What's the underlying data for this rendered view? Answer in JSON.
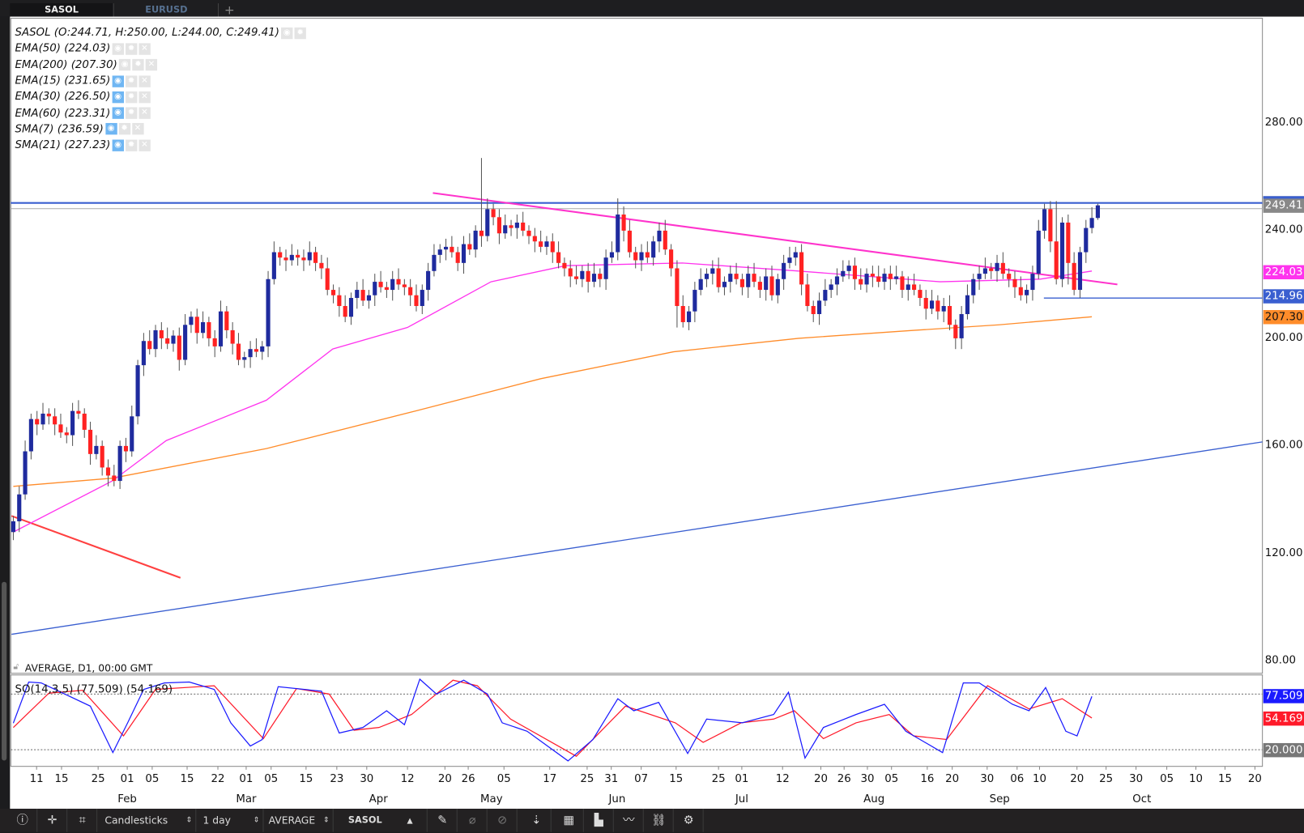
{
  "tabs": [
    "SASOL",
    "EURUSD"
  ],
  "legend": {
    "main": "SASOL (O:244.71, H:250.00, L:244.00, C:249.41)",
    "indicators": [
      {
        "label": "EMA(50) (224.03)",
        "visible": false
      },
      {
        "label": "EMA(200) (207.30)",
        "visible": false
      },
      {
        "label": "EMA(15) (231.65)",
        "visible": true
      },
      {
        "label": "EMA(30) (226.50)",
        "visible": true
      },
      {
        "label": "EMA(60) (223.31)",
        "visible": true
      },
      {
        "label": "SMA(7) (236.59)",
        "visible": true
      },
      {
        "label": "SMA(21) (227.23)",
        "visible": true
      }
    ]
  },
  "footer_label": "AVERAGE, D1, 00:00 GMT",
  "oscillator_label": "SO(14,3,5) (77.509) (54.169)",
  "price_badges": {
    "close": "249.41",
    "ema50": "224.03",
    "hline": "214.96",
    "ema200": "207.30"
  },
  "osc_badges": {
    "k": "77.509",
    "d": "54.169",
    "level": "20.000"
  },
  "colors": {
    "up": "#1f2b9e",
    "down": "#ff2222",
    "ema50": "#ff33ee",
    "ema200": "#ff8c2a",
    "k": "#1a1aff",
    "d": "#ff1a2a"
  },
  "toolbar": {
    "chart_type": "Candlesticks",
    "interval": "1 day",
    "price_type": "AVERAGE",
    "symbol": "SASOL"
  },
  "chart_data": {
    "type": "candlestick",
    "symbol": "SASOL",
    "y_ticks": [
      "280.00",
      "240.00",
      "200.00",
      "160.00",
      "120.00",
      "80.00"
    ],
    "ylim": [
      80,
      280
    ],
    "date_ticks": [
      "11",
      "15",
      "25",
      "01",
      "05",
      "15",
      "22",
      "01",
      "05",
      "15",
      "23",
      "30",
      "12",
      "20",
      "26",
      "05",
      "17",
      "25",
      "31",
      "07",
      "15",
      "25",
      "01",
      "12",
      "20",
      "26",
      "30",
      "05",
      "16",
      "20",
      "30",
      "06",
      "10",
      "20",
      "25",
      "30",
      "05",
      "10",
      "15",
      "20"
    ],
    "month_ticks": [
      "Feb",
      "Mar",
      "Apr",
      "May",
      "Jun",
      "Jul",
      "Aug",
      "Sep",
      "Oct"
    ],
    "first_open": 128,
    "last_ohlc": [
      244.71,
      250.0,
      244.0,
      249.41
    ],
    "closes": [
      132,
      142,
      158,
      170,
      168,
      172,
      171,
      168,
      165,
      164,
      173,
      172,
      166,
      157,
      160,
      152,
      149,
      147,
      160,
      158,
      171,
      190,
      199,
      196,
      203,
      200,
      198,
      201,
      192,
      205,
      208,
      202,
      206,
      200,
      197,
      210,
      203,
      198,
      192,
      193,
      196,
      195,
      197,
      222,
      232,
      230,
      229,
      231,
      230,
      229,
      232,
      228,
      226,
      218,
      216,
      212,
      208,
      215,
      218,
      214,
      216,
      221,
      219,
      218,
      222,
      220,
      219,
      216,
      212,
      218,
      225,
      231,
      233,
      234,
      232,
      228,
      235,
      233,
      240,
      238,
      248,
      245,
      239,
      242,
      241,
      243,
      240,
      238,
      236,
      234,
      236,
      232,
      228,
      226,
      223,
      222,
      225,
      221,
      224,
      222,
      230,
      232,
      246,
      240,
      232,
      229,
      232,
      230,
      236,
      240,
      233,
      226,
      212,
      206,
      210,
      218,
      222,
      224,
      226,
      219,
      221,
      224,
      222,
      219,
      224,
      221,
      218,
      223,
      216,
      222,
      228,
      230,
      232,
      220,
      212,
      209,
      214,
      218,
      220,
      223,
      225,
      227,
      222,
      220,
      224,
      223,
      221,
      224,
      222,
      223,
      218,
      220,
      218,
      215,
      211,
      214,
      210,
      212,
      205,
      200,
      209,
      216,
      222,
      224,
      226,
      225,
      228,
      224,
      222,
      219,
      216,
      218,
      224,
      240,
      248,
      236,
      222,
      243,
      228,
      218,
      232,
      241,
      244.71,
      249.41
    ],
    "high_overrides": [
      [
        79,
        267
      ],
      [
        102,
        252
      ],
      [
        176,
        251
      ]
    ],
    "low_overrides": [
      [
        112,
        204
      ],
      [
        159,
        196
      ],
      [
        178,
        220
      ]
    ],
    "ema50": [
      [
        0,
        128
      ],
      [
        16.7,
        147
      ],
      [
        25.8,
        162
      ],
      [
        42.7,
        177
      ],
      [
        53.9,
        196
      ],
      [
        66.5,
        204
      ],
      [
        80.6,
        221
      ],
      [
        93.2,
        227
      ],
      [
        112.9,
        228
      ],
      [
        132.5,
        225
      ],
      [
        156.4,
        221
      ],
      [
        173.3,
        222
      ],
      [
        182,
        225
      ]
    ],
    "ema200": [
      [
        0,
        145
      ],
      [
        16.7,
        148
      ],
      [
        42.7,
        159
      ],
      [
        67.9,
        173
      ],
      [
        89,
        185
      ],
      [
        111.4,
        195
      ],
      [
        132.5,
        200
      ],
      [
        152.2,
        203
      ],
      [
        166.3,
        205
      ],
      [
        182,
        208
      ]
    ],
    "drawings": {
      "resistance": {
        "from": [
          70.8,
          254
        ],
        "to": [
          186.3,
          220
        ],
        "color": "#ff33cc"
      },
      "hline_top": {
        "price": 250.3,
        "color": "#3a5fd0"
      },
      "hline_close": {
        "price": 249.41,
        "color": "#aaaaaa"
      },
      "hline_support": {
        "price": 214.96,
        "from_index": 173.9,
        "color": "#3a5fd0"
      },
      "red_trend": {
        "from": [
          -0.3,
          134
        ],
        "to": [
          28.2,
          111
        ],
        "color": "#ff4040"
      },
      "blue_trend": {
        "from": [
          -0.3,
          90
        ],
        "to": [
          210.8,
          161.5
        ],
        "color": "#3a5fd0"
      }
    },
    "stochastic": {
      "levels": [
        80,
        20
      ],
      "k": [
        [
          0,
          48.7
        ],
        [
          2.6,
          93
        ],
        [
          4.7,
          92
        ],
        [
          13,
          67
        ],
        [
          16.8,
          17
        ],
        [
          19.3,
          49
        ],
        [
          22,
          85
        ],
        [
          25.5,
          92
        ],
        [
          29.7,
          93
        ],
        [
          33.9,
          85
        ],
        [
          36.7,
          49
        ],
        [
          40,
          24
        ],
        [
          42,
          31
        ],
        [
          44.7,
          88
        ],
        [
          52,
          83
        ],
        [
          55,
          38
        ],
        [
          59,
          44
        ],
        [
          63,
          62
        ],
        [
          66,
          47
        ],
        [
          68.6,
          96
        ],
        [
          71.4,
          80
        ],
        [
          76,
          95
        ],
        [
          80,
          80
        ],
        [
          82.5,
          49
        ],
        [
          86.7,
          40
        ],
        [
          93.6,
          8
        ],
        [
          97.8,
          31
        ],
        [
          102,
          75
        ],
        [
          104.7,
          62
        ],
        [
          108.9,
          71
        ],
        [
          113.8,
          16
        ],
        [
          117,
          53
        ],
        [
          123,
          49
        ],
        [
          128.3,
          58
        ],
        [
          130.8,
          82
        ],
        [
          133.6,
          11
        ],
        [
          136.7,
          44
        ],
        [
          142.2,
          58
        ],
        [
          147,
          69
        ],
        [
          150.6,
          40
        ],
        [
          156.8,
          17
        ],
        [
          160.3,
          92
        ],
        [
          163,
          92
        ],
        [
          168.6,
          69
        ],
        [
          171.4,
          62
        ],
        [
          174.2,
          87
        ],
        [
          177.6,
          40
        ],
        [
          179.5,
          35
        ],
        [
          182,
          77.509
        ]
      ],
      "d": [
        [
          0,
          44
        ],
        [
          6,
          81
        ],
        [
          11.7,
          84
        ],
        [
          18.6,
          35
        ],
        [
          24,
          85
        ],
        [
          33.9,
          89
        ],
        [
          42.2,
          32
        ],
        [
          47.8,
          86
        ],
        [
          53.3,
          80
        ],
        [
          57.5,
          41
        ],
        [
          61.7,
          44
        ],
        [
          67.2,
          58
        ],
        [
          74.2,
          95
        ],
        [
          78.3,
          89
        ],
        [
          83.9,
          53
        ],
        [
          95,
          13
        ],
        [
          103.3,
          67
        ],
        [
          111.7,
          49
        ],
        [
          116.4,
          28
        ],
        [
          122.8,
          49
        ],
        [
          128.3,
          53
        ],
        [
          131.8,
          62
        ],
        [
          136.7,
          32
        ],
        [
          142.2,
          49
        ],
        [
          147.8,
          58
        ],
        [
          151.9,
          35
        ],
        [
          157.5,
          31
        ],
        [
          164.4,
          89
        ],
        [
          171.4,
          64
        ],
        [
          177,
          75
        ],
        [
          182,
          54.169
        ]
      ]
    }
  }
}
